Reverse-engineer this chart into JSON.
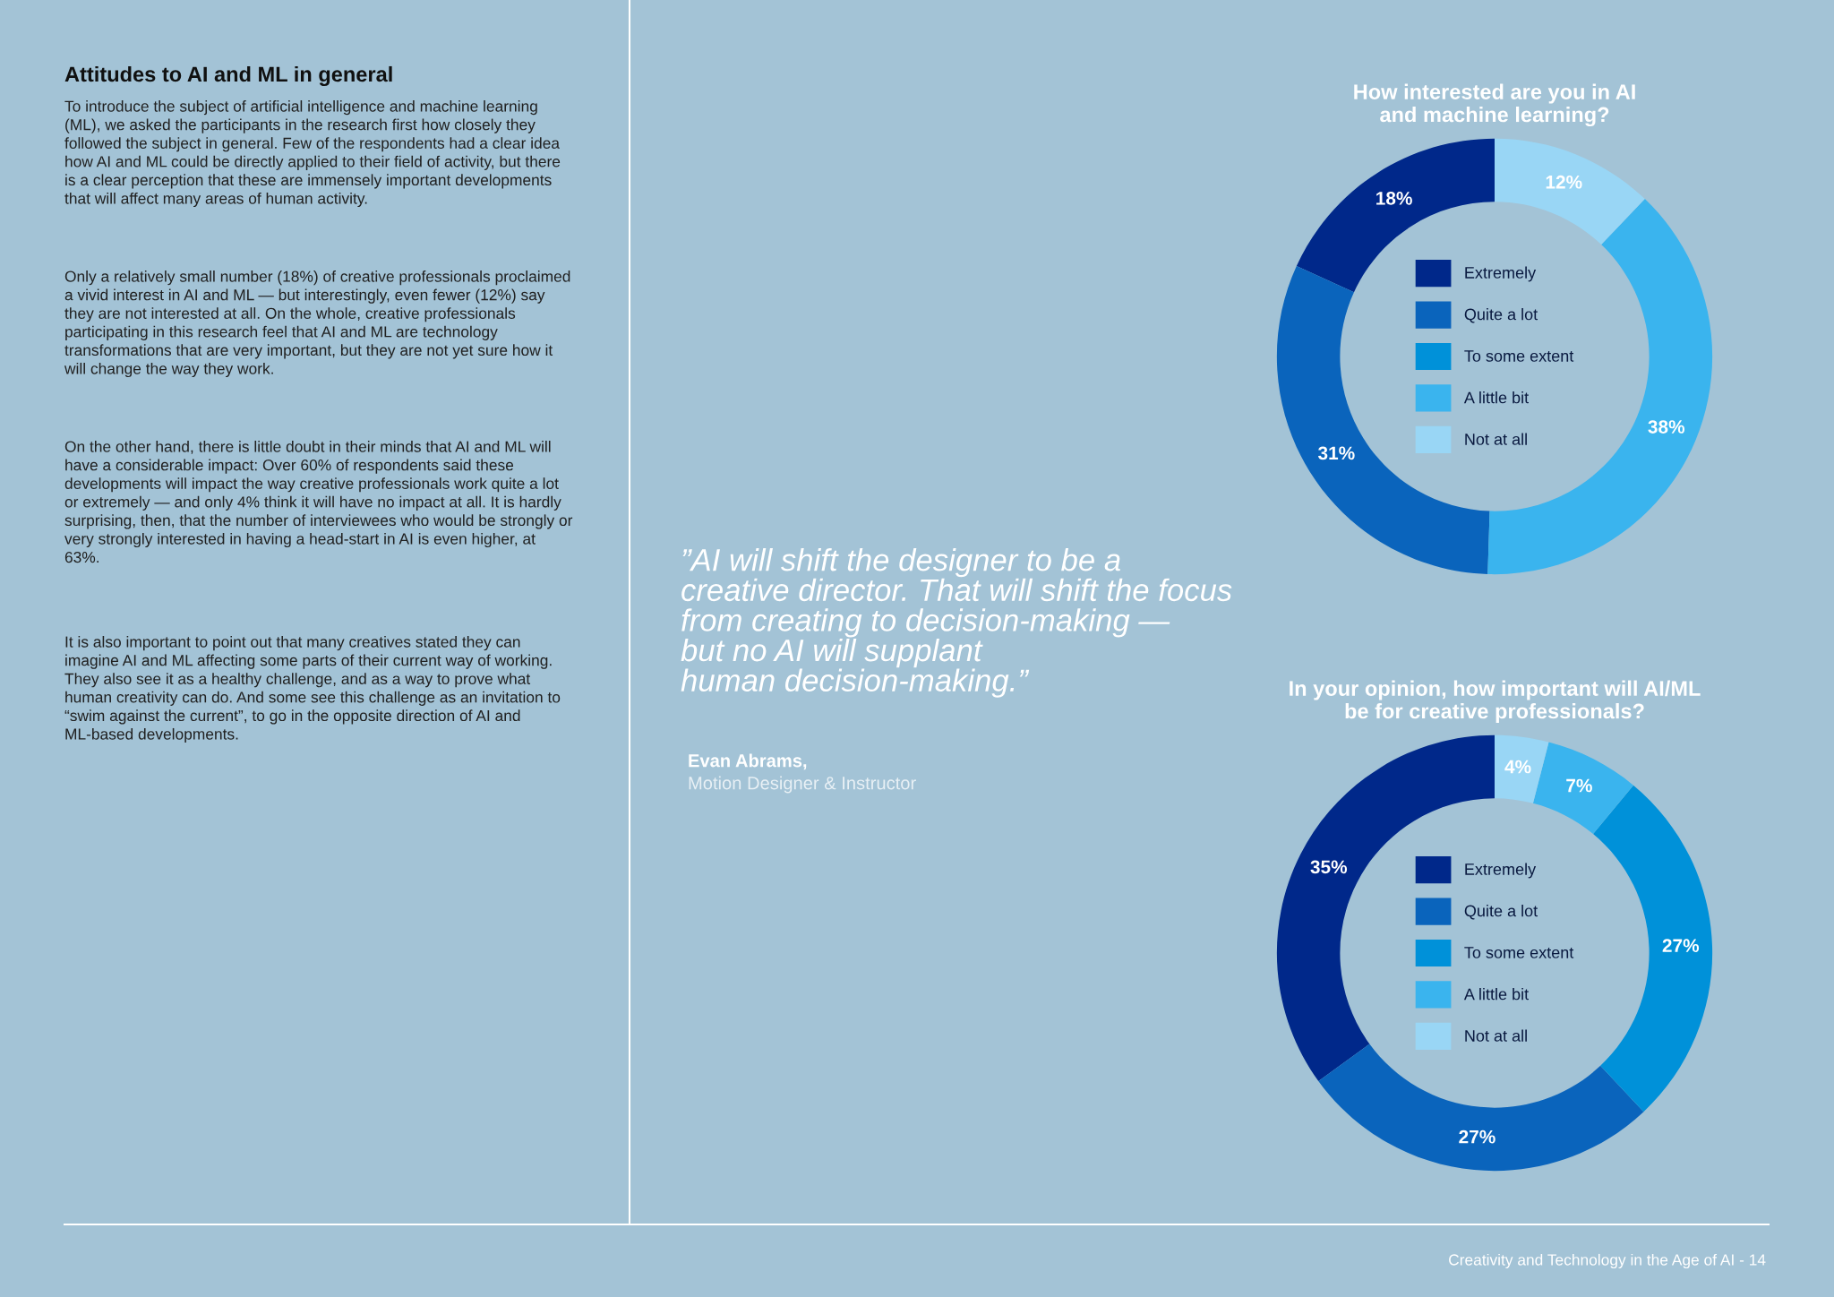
{
  "chart_data": [
    {
      "type": "donut",
      "title": "How interested are you in AI\nand machine learning?",
      "categories": [
        "Extremely",
        "Quite a lot",
        "To some extent",
        "A little bit",
        "Not at all"
      ],
      "values": [
        18,
        31,
        0,
        38,
        12
      ],
      "value_labels": [
        "18%",
        "31%",
        null,
        "38%",
        "12%"
      ],
      "colors": [
        "#00288a",
        "#0a64bc",
        "#0091d9",
        "#3ab4ee",
        "#99d6f5"
      ],
      "legend": "center",
      "annotations": [
        "Attitudes to AI and ML in general",
        "To introduce the subject of artificial intelligence and machine learning (ML), we asked the participants in the research first how closely they followed the subject in general. Few of the respondents had a clear idea how AI and ML could be directly applied to their field of activity, but there is a clear perception that these are immensely important developments that will affect many areas of human activity.",
        "Only a relatively small number (18%) of creative professionals proclaimed a vivid interest in AI and ML — but interestingly, even fewer (12%) say they are not interested at all. On the whole, creative professionals participating in this research feel that AI and ML are technology transformations that are very important, but they are not yet sure how it will change the way they work.",
        "On the other hand, there is little doubt in their minds that AI and ML will have a considerable impact: Over 60% of respondents said these developments will impact the way creative professionals work quite a lot or extremely — and only 4% think it will have no impact at all. It is hardly surprising, then, that the number of interviewees who would be strongly or very strongly interested in having a head-start in AI is even higher, at 63%.",
        "It is also important to point out that many creatives stated they can imagine AI and ML affecting some parts of their current way of working. They also see it as a healthy challenge, and as a way to prove what human creativity can do. And some see this challenge as an invitation to “swim against the current”, to go in the opposite direction of AI and ML-based developments.",
        "”AI will shift the designer to be a\ncreative director. That will shift the focus\nfrom creating to decision-making —\nbut no AI will supplant\nhuman decision-making.”",
        "Evan Abrams,",
        "Motion Designer & Instructor",
        "Creativity and Technology in the Age of AI - 14"
      ]
    },
    {
      "type": "donut",
      "title": "In your opinion, how important will AI/ML\nbe for creative professionals?",
      "categories": [
        "Extremely",
        "Quite a lot",
        "To some extent",
        "A little bit",
        "Not at all"
      ],
      "values": [
        35,
        27,
        27,
        7,
        4
      ],
      "value_labels": [
        "35%",
        "27%",
        "27%",
        "7%",
        "4%"
      ],
      "colors": [
        "#00288a",
        "#0a64bc",
        "#0091d9",
        "#3ab4ee",
        "#99d6f5"
      ],
      "legend": "center"
    }
  ]
}
